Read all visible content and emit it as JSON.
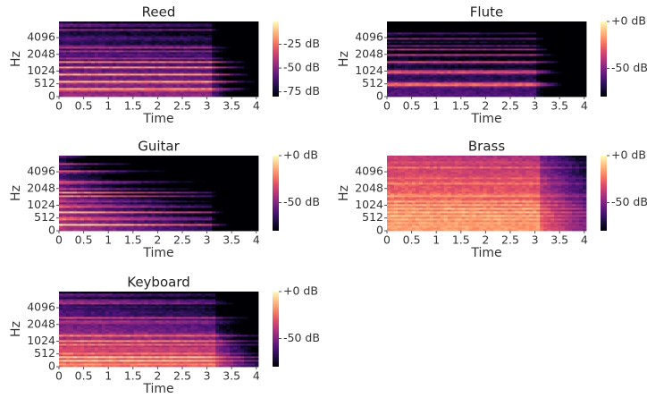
{
  "chart_data": [
    {
      "type": "spectrogram",
      "title": "Reed",
      "xlabel": "Time",
      "ylabel": "Hz",
      "colormap": "magma",
      "xlim": [
        0,
        4.04
      ],
      "xticks": [
        0,
        0.5,
        1,
        1.5,
        2,
        2.5,
        3,
        3.5,
        4
      ],
      "ylim": [
        0,
        8000
      ],
      "yscale": "mel",
      "yticks": [
        0,
        512,
        1024,
        2048,
        4096
      ],
      "clim": [
        -80,
        -1
      ],
      "cticks": [
        {
          "value": -25,
          "label": "-25 dB"
        },
        {
          "value": -50,
          "label": "-50 dB"
        },
        {
          "value": -75,
          "label": "-75 dB"
        }
      ]
    },
    {
      "type": "spectrogram",
      "title": "Flute",
      "xlabel": "Time",
      "ylabel": "Hz",
      "colormap": "magma",
      "xlim": [
        0,
        4.04
      ],
      "xticks": [
        0,
        0.5,
        1,
        1.5,
        2,
        2.5,
        3,
        3.5,
        4
      ],
      "ylim": [
        0,
        8000
      ],
      "yscale": "mel",
      "yticks": [
        0,
        512,
        1024,
        2048,
        4096
      ],
      "clim": [
        -80,
        0
      ],
      "cticks": [
        {
          "value": 0,
          "label": "+0 dB"
        },
        {
          "value": -50,
          "label": "-50 dB"
        }
      ]
    },
    {
      "type": "spectrogram",
      "title": "Guitar",
      "xlabel": "Time",
      "ylabel": "Hz",
      "colormap": "magma",
      "xlim": [
        0,
        4.04
      ],
      "xticks": [
        0,
        0.5,
        1,
        1.5,
        2,
        2.5,
        3,
        3.5,
        4
      ],
      "ylim": [
        0,
        8000
      ],
      "yscale": "mel",
      "yticks": [
        0,
        512,
        1024,
        2048,
        4096
      ],
      "clim": [
        -80,
        0
      ],
      "cticks": [
        {
          "value": 0,
          "label": "+0 dB"
        },
        {
          "value": -50,
          "label": "-50 dB"
        }
      ]
    },
    {
      "type": "spectrogram",
      "title": "Brass",
      "xlabel": "Time",
      "ylabel": "Hz",
      "colormap": "magma",
      "xlim": [
        0,
        4.04
      ],
      "xticks": [
        0,
        0.5,
        1,
        1.5,
        2,
        2.5,
        3,
        3.5,
        4
      ],
      "ylim": [
        0,
        8000
      ],
      "yscale": "mel",
      "yticks": [
        0,
        512,
        1024,
        2048,
        4096
      ],
      "clim": [
        -80,
        0
      ],
      "cticks": [
        {
          "value": 0,
          "label": "+0 dB"
        },
        {
          "value": -50,
          "label": "-50 dB"
        }
      ]
    },
    {
      "type": "spectrogram",
      "title": "Keyboard",
      "xlabel": "Time",
      "ylabel": "Hz",
      "colormap": "magma",
      "xlim": [
        0,
        4.04
      ],
      "xticks": [
        0,
        0.5,
        1,
        1.5,
        2,
        2.5,
        3,
        3.5,
        4
      ],
      "ylim": [
        0,
        8000
      ],
      "yscale": "mel",
      "yticks": [
        0,
        512,
        1024,
        2048,
        4096
      ],
      "clim": [
        -80,
        0
      ],
      "cticks": [
        {
          "value": 0,
          "label": "+0 dB"
        },
        {
          "value": -50,
          "label": "-50 dB"
        }
      ]
    }
  ]
}
